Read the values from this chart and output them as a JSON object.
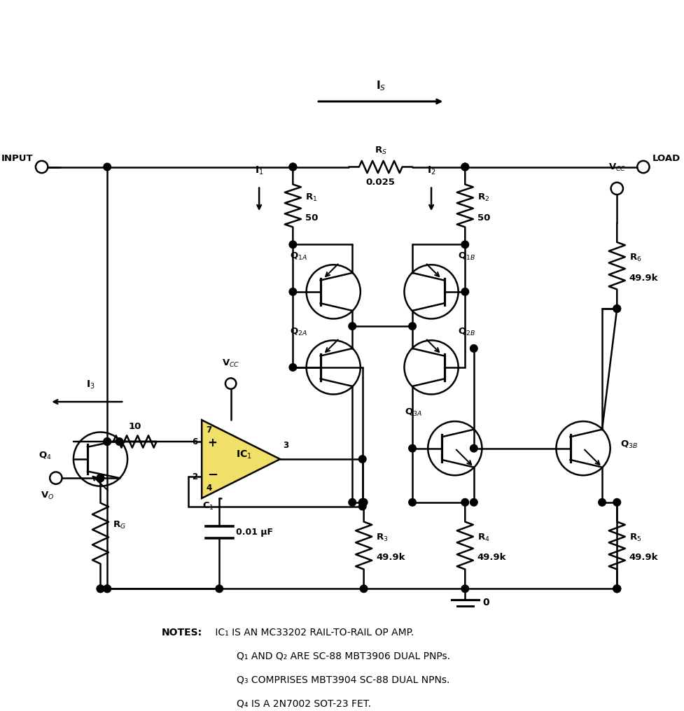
{
  "bg_color": "#ffffff",
  "line_color": "#000000",
  "opamp_fill": "#f0e068",
  "notes_bold": "NOTES:",
  "note1": " IC₁ IS AN MC33202 RAIL-TO-RAIL OP AMP.",
  "note2": "Q₁ AND Q₂ ARE SC-88 MBT3906 DUAL PNPs.",
  "note3": "Q₃ COMPRISES MBT3904 SC-88 DUAL NPNs.",
  "note4": "Q₄ IS A 2N7002 SOT-23 FET."
}
